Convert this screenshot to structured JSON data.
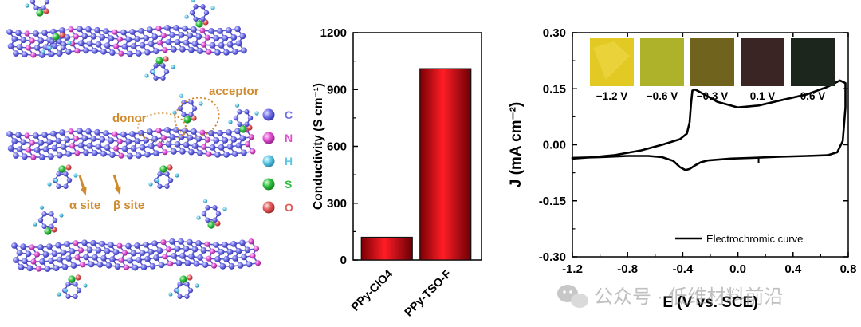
{
  "panel_a": {
    "legend": [
      {
        "label": "C",
        "color": "#6f6fe8"
      },
      {
        "label": "N",
        "color": "#e04fd0"
      },
      {
        "label": "H",
        "color": "#5cc8e6"
      },
      {
        "label": "S",
        "color": "#2fbf3f"
      },
      {
        "label": "O",
        "color": "#e35a5a"
      }
    ],
    "annotations": {
      "donor": "donor",
      "acceptor": "acceptor",
      "alpha_site": "α site",
      "beta_site": "β site"
    },
    "annotation_color": "#d08a2e"
  },
  "chart_data": [
    {
      "type": "bar",
      "categories": [
        "PPy-ClO4",
        "PPy-TSO-F"
      ],
      "values": [
        120,
        1010
      ],
      "ylabel": "Conductivity (S cm⁻¹)",
      "ylim": [
        0,
        1200
      ],
      "yticks": [
        0,
        300,
        600,
        900,
        1200
      ],
      "bar_color": "#e8141c",
      "grid": false
    },
    {
      "type": "line",
      "title": "",
      "xlabel": "E (V vs. SCE)",
      "ylabel": "J (mA cm⁻²)",
      "xlim": [
        -1.2,
        0.8
      ],
      "ylim": [
        -0.3,
        0.3
      ],
      "xticks": [
        -1.2,
        -0.8,
        -0.4,
        0.0,
        0.4,
        0.8
      ],
      "yticks": [
        -0.3,
        -0.15,
        0.0,
        0.15,
        0.3
      ],
      "series": [
        {
          "name": "Electrochromic curve",
          "x": [
            -1.2,
            -1.0,
            -0.8,
            -0.65,
            -0.55,
            -0.47,
            -0.42,
            -0.38,
            -0.35,
            -0.31,
            -0.27,
            -0.22,
            -0.15,
            -0.05,
            0.1,
            0.3,
            0.5,
            0.65,
            0.72,
            0.76,
            0.78,
            0.78,
            0.74,
            0.65,
            0.5,
            0.3,
            0.15,
            0.0,
            -0.15,
            -0.22,
            -0.27,
            -0.31,
            -0.33,
            -0.34,
            -0.35,
            -0.37,
            -0.42,
            -0.55,
            -0.7,
            -0.9,
            -1.05,
            -1.2
          ],
          "y": [
            -0.035,
            -0.033,
            -0.03,
            -0.03,
            -0.033,
            -0.043,
            -0.06,
            -0.068,
            -0.065,
            -0.055,
            -0.047,
            -0.042,
            -0.04,
            -0.037,
            -0.035,
            -0.032,
            -0.03,
            -0.028,
            -0.02,
            0.01,
            0.1,
            0.165,
            0.172,
            0.155,
            0.135,
            0.118,
            0.105,
            0.1,
            0.115,
            0.13,
            0.14,
            0.148,
            0.145,
            0.11,
            0.06,
            0.03,
            0.015,
            0.0,
            -0.015,
            -0.028,
            -0.033,
            -0.037
          ]
        }
      ],
      "legend_position": "bottom-right",
      "insets": [
        {
          "label": "−1.2 V",
          "color": "#e2c923"
        },
        {
          "label": "−0.6 V",
          "color": "#aeb22a"
        },
        {
          "label": "−0.3 V",
          "color": "#6f631e"
        },
        {
          "label": "0.1 V",
          "color": "#3a2524"
        },
        {
          "label": "0.6 V",
          "color": "#1c261d"
        }
      ]
    }
  ],
  "watermark": {
    "text": "公众号 · 低维材料前沿"
  }
}
